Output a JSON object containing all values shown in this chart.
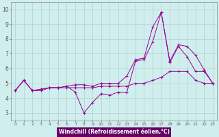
{
  "xlabel": "Windchill (Refroidissement éolien,°C)",
  "x": [
    0,
    1,
    2,
    3,
    4,
    5,
    6,
    7,
    8,
    9,
    10,
    11,
    12,
    13,
    14,
    15,
    16,
    17,
    18,
    19,
    20,
    21,
    22,
    23
  ],
  "line_volatile": [
    4.5,
    5.2,
    4.5,
    4.6,
    4.7,
    4.7,
    4.8,
    4.4,
    3.0,
    3.7,
    4.3,
    4.2,
    4.4,
    4.4,
    6.5,
    6.6,
    7.8,
    9.8,
    6.4,
    7.5,
    6.8,
    5.8,
    5.8,
    5.0
  ],
  "line_upper": [
    4.5,
    5.2,
    4.5,
    4.6,
    4.7,
    4.7,
    4.8,
    4.9,
    4.9,
    4.8,
    5.0,
    5.0,
    5.0,
    5.5,
    6.6,
    6.7,
    8.8,
    9.8,
    6.5,
    7.6,
    7.5,
    6.9,
    5.9,
    5.0
  ],
  "line_flat": [
    4.5,
    5.2,
    4.5,
    4.5,
    4.7,
    4.7,
    4.7,
    4.7,
    4.7,
    4.7,
    4.8,
    4.8,
    4.8,
    4.8,
    5.0,
    5.0,
    5.2,
    5.4,
    5.8,
    5.8,
    5.8,
    5.2,
    5.0,
    5.0
  ],
  "bg_color": "#d0eeed",
  "plot_bg": "#d0eeed",
  "line_color": "#990099",
  "grid_color": "#b0d0cc",
  "xlabel_bg": "#660066",
  "xlabel_fg": "#ffffff",
  "ylim": [
    2.5,
    10.5
  ],
  "xlim": [
    -0.5,
    23.5
  ],
  "yticks": [
    3,
    4,
    5,
    6,
    7,
    8,
    9,
    10
  ],
  "xticks": [
    0,
    1,
    2,
    3,
    4,
    5,
    6,
    7,
    8,
    9,
    10,
    11,
    12,
    13,
    14,
    15,
    16,
    17,
    18,
    19,
    20,
    21,
    22,
    23
  ]
}
